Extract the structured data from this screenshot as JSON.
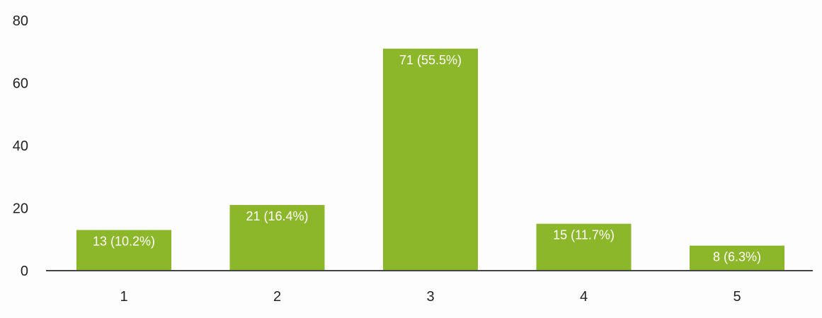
{
  "chart_data": {
    "type": "bar",
    "title": "",
    "xlabel": "",
    "ylabel": "",
    "categories": [
      "1",
      "2",
      "3",
      "4",
      "5"
    ],
    "values": [
      13,
      21,
      71,
      15,
      8
    ],
    "data_labels": [
      "13 (10.2%)",
      "21 (16.4%)",
      "71 (55.5%)",
      "15 (11.7%)",
      "8 (6.3%)"
    ],
    "ylim": [
      0,
      80
    ],
    "yticks": [
      0,
      20,
      40,
      60,
      80
    ],
    "grid": false,
    "legend": "none",
    "colors": {
      "bar": "#8DB72A",
      "axis": "#444444",
      "label_text": "#ffffff",
      "tick_text": "#222222"
    }
  }
}
